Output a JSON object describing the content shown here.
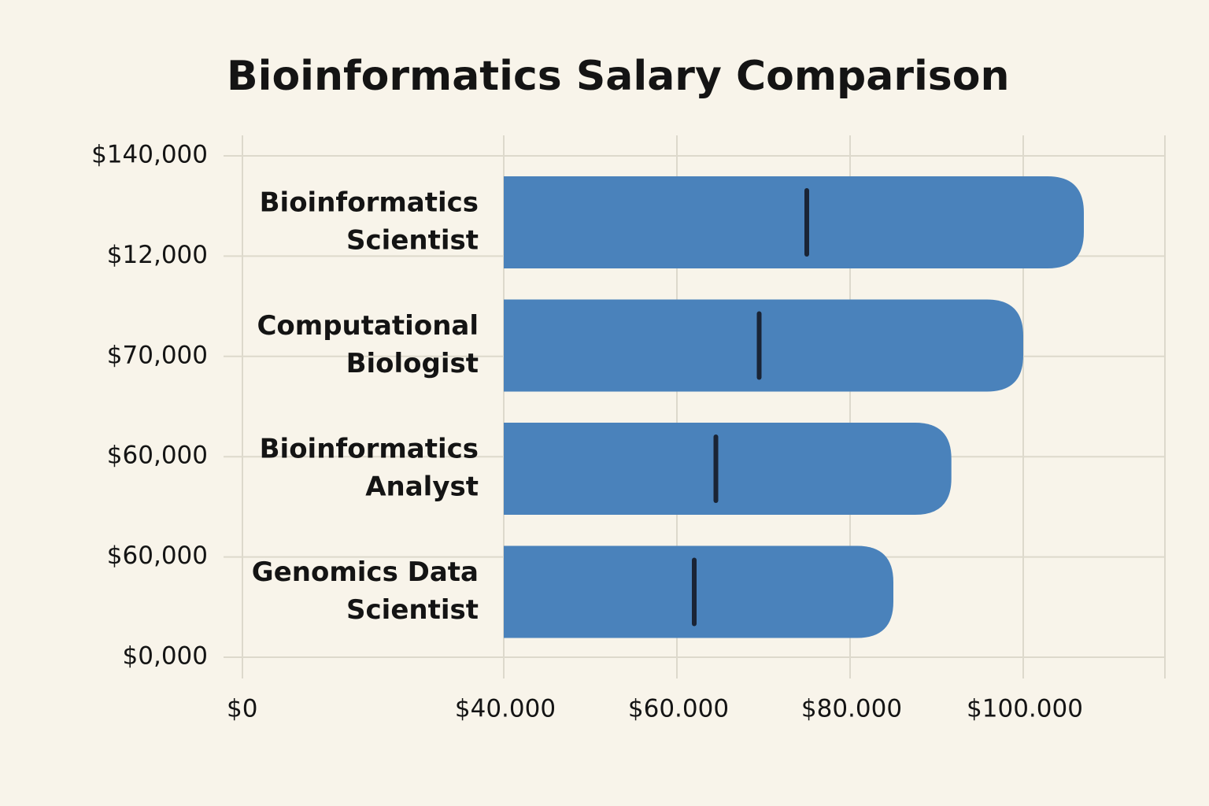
{
  "chart_data": {
    "type": "range_bar",
    "title": "Bioinformatics Salary Comparison",
    "categories": [
      "Bioinformatics Scientist",
      "Computational Biologist",
      "Bioinformatics Analyst",
      "Genomics Data Scientist"
    ],
    "low": [
      40000,
      40000,
      40000,
      40000
    ],
    "high": [
      107000,
      100000,
      91700,
      85000
    ],
    "median": [
      75000,
      69500,
      64500,
      62000
    ],
    "color": "#4a82bb",
    "median_color": "#1a2435",
    "y_labels": [
      "$140,000",
      "$12,000",
      "$70,000",
      "$60,000",
      "$60,000",
      "$0,000"
    ],
    "xticks": [
      {
        "value": 0,
        "label": "$0"
      },
      {
        "value": 40000,
        "label": "$40.000"
      },
      {
        "value": 60000,
        "label": "$60.000"
      },
      {
        "value": 80000,
        "label": "$80.000"
      },
      {
        "value": 100000,
        "label": "$100.000"
      }
    ],
    "grid": true
  }
}
